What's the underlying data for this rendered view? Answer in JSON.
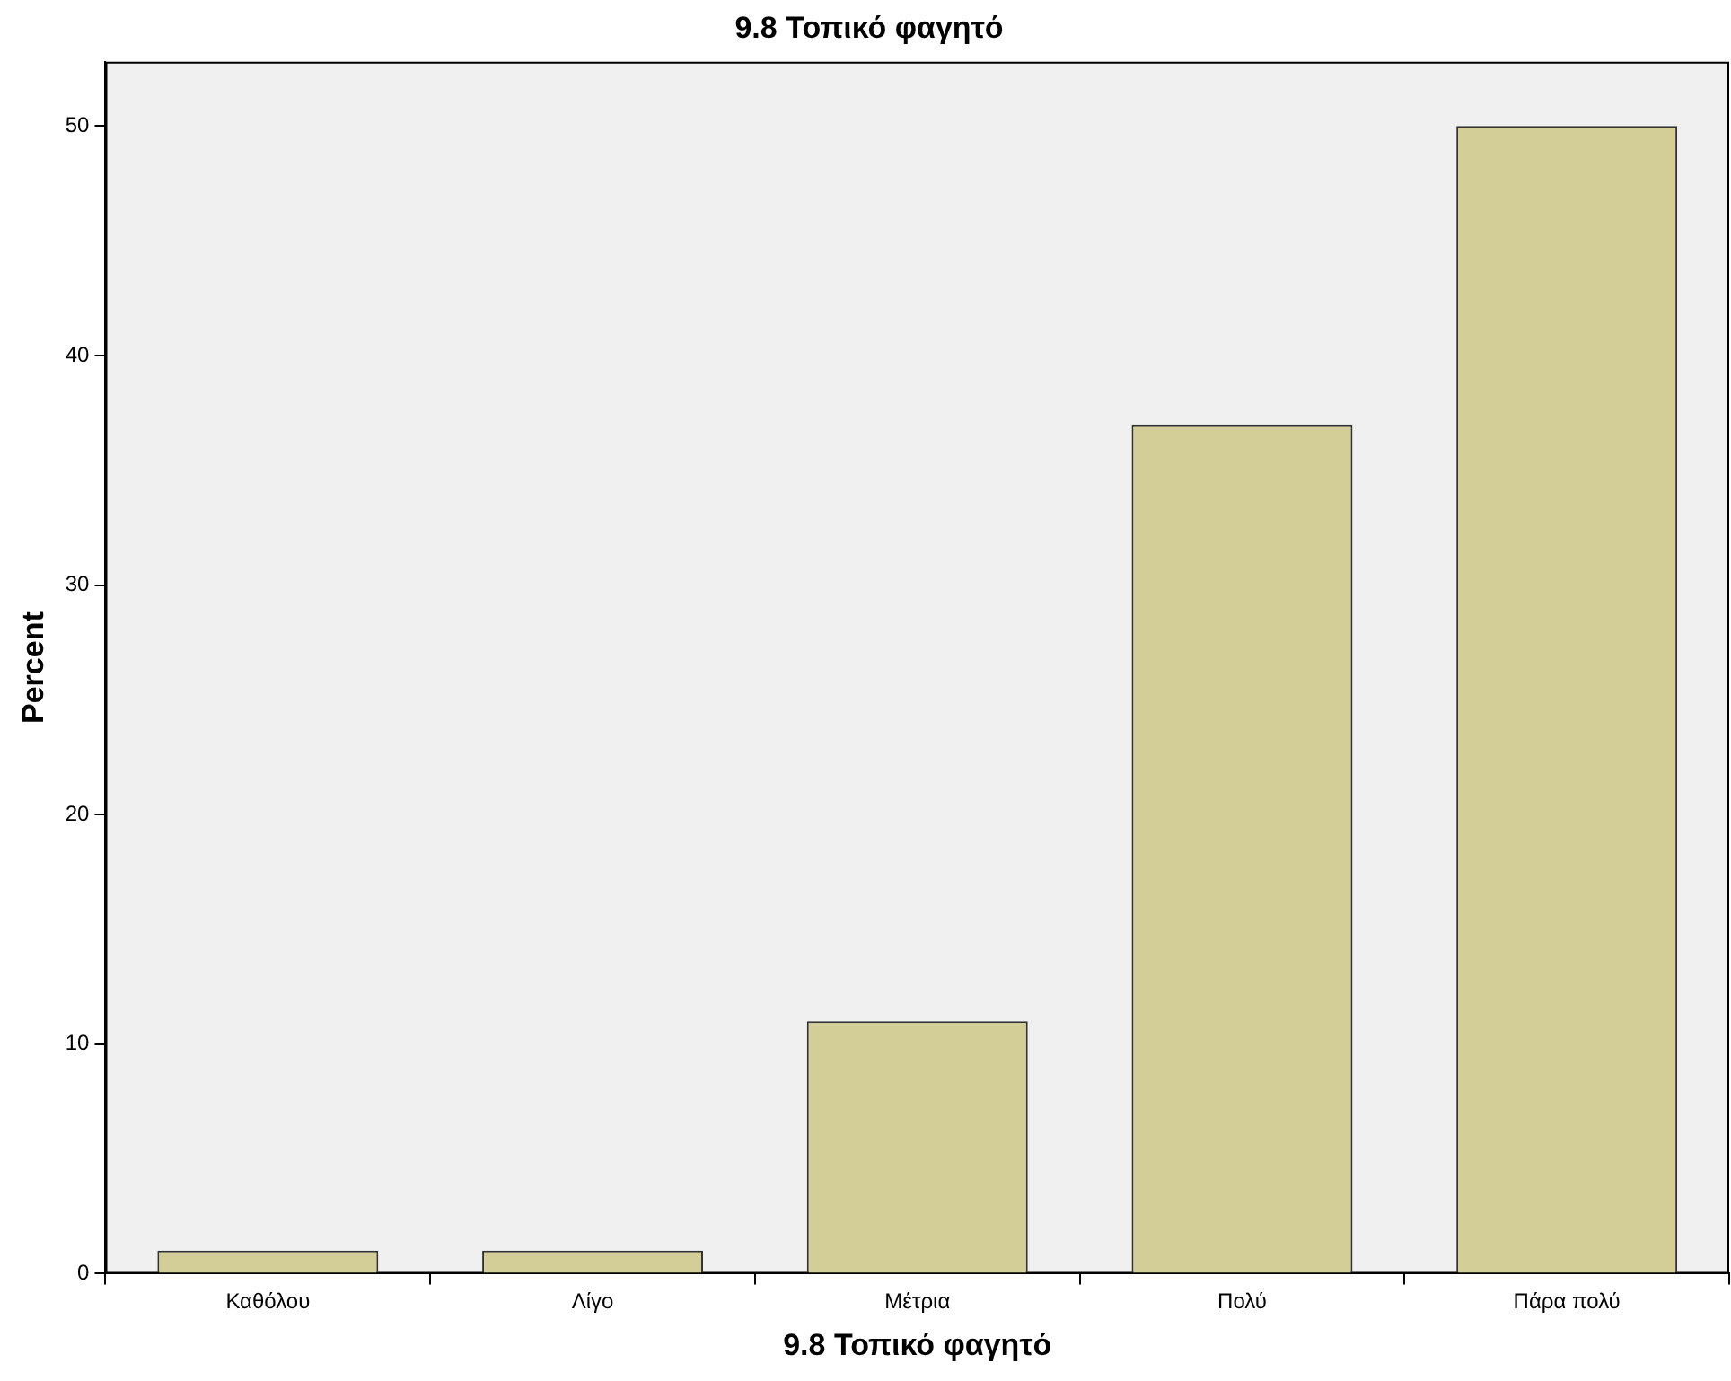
{
  "chart_data": {
    "type": "bar",
    "title": "9.8 Τοπικό φαγητό",
    "xlabel": "9.8 Τοπικό φαγητό",
    "ylabel": "Percent",
    "categories": [
      "Καθόλου",
      "Λίγο",
      "Μέτρια",
      "Πολύ",
      "Πάρα πολύ"
    ],
    "values": [
      1,
      1,
      11,
      37,
      50
    ],
    "color": "#d3ce97",
    "ylim": [
      0,
      52.8
    ],
    "yticks": [
      0,
      10,
      20,
      30,
      40,
      50
    ],
    "grid": false,
    "legend": false
  }
}
